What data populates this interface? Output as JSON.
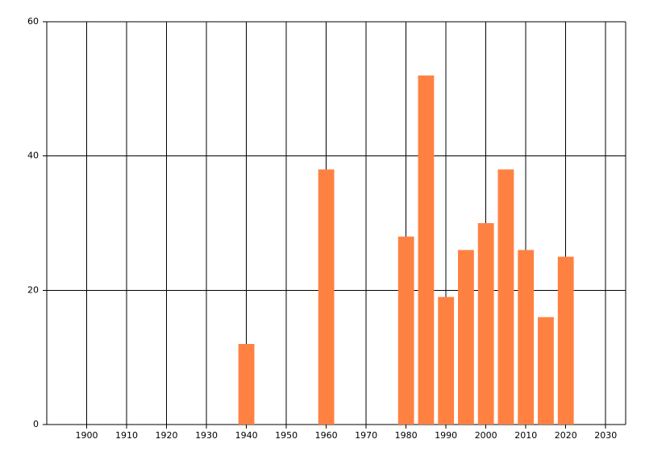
{
  "chart_data": {
    "type": "bar",
    "x": [
      1940,
      1960,
      1980,
      1985,
      1990,
      1995,
      2000,
      2005,
      2010,
      2015,
      2020
    ],
    "values": [
      12,
      38,
      28,
      52,
      19,
      26,
      30,
      38,
      26,
      16,
      25
    ],
    "color": "#ff8142",
    "xlim": [
      1890,
      2035
    ],
    "xticks": [
      1900,
      1910,
      1920,
      1930,
      1940,
      1950,
      1960,
      1970,
      1980,
      1990,
      2000,
      2010,
      2020,
      2030
    ],
    "ylim": [
      0,
      60
    ],
    "yticks": [
      0,
      20,
      40,
      60
    ],
    "grid": true
  }
}
